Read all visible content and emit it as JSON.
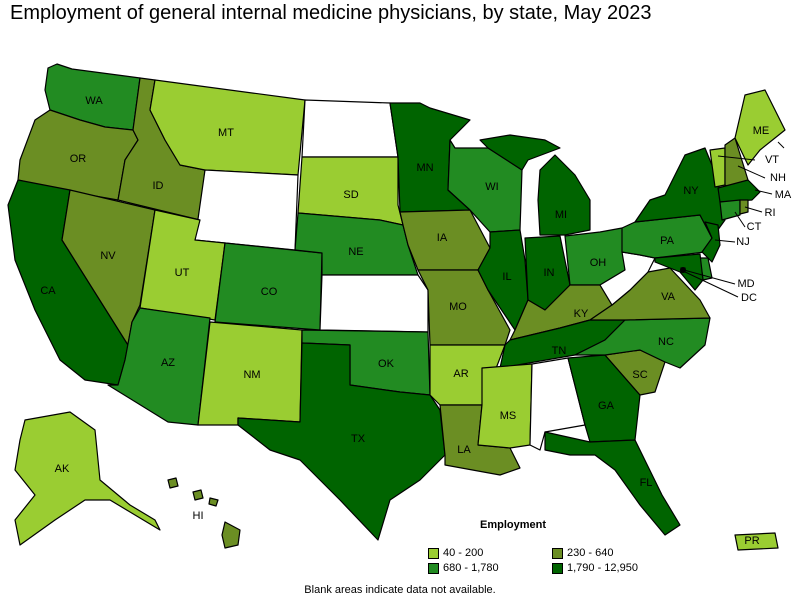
{
  "title": "Employment of general internal medicine physicians, by state, May 2023",
  "legend": {
    "title": "Employment",
    "items": [
      {
        "label": "40 - 200",
        "color": "#9acd32"
      },
      {
        "label": "230 - 640",
        "color": "#6b8e23"
      },
      {
        "label": "680 - 1,780",
        "color": "#228b22"
      },
      {
        "label": "1,790 - 12,950",
        "color": "#006400"
      }
    ]
  },
  "note": "Blank areas indicate data not available.",
  "colors": {
    "c1": "#9acd32",
    "c2": "#6b8e23",
    "c3": "#228b22",
    "c4": "#006400",
    "blank": "#ffffff"
  },
  "states": {
    "WA": {
      "label": "WA",
      "cls": "c3"
    },
    "OR": {
      "label": "OR",
      "cls": "c2"
    },
    "CA": {
      "label": "CA",
      "cls": "c4"
    },
    "ID": {
      "label": "ID",
      "cls": "c2"
    },
    "NV": {
      "label": "NV",
      "cls": "c2"
    },
    "MT": {
      "label": "MT",
      "cls": "c1"
    },
    "WY": {
      "label": "",
      "cls": "blank"
    },
    "UT": {
      "label": "UT",
      "cls": "c1"
    },
    "AZ": {
      "label": "AZ",
      "cls": "c3"
    },
    "CO": {
      "label": "CO",
      "cls": "c3"
    },
    "NM": {
      "label": "NM",
      "cls": "c1"
    },
    "ND": {
      "label": "",
      "cls": "blank"
    },
    "SD": {
      "label": "SD",
      "cls": "c1"
    },
    "NE": {
      "label": "NE",
      "cls": "c3"
    },
    "KS": {
      "label": "",
      "cls": "blank"
    },
    "OK": {
      "label": "OK",
      "cls": "c3"
    },
    "TX": {
      "label": "TX",
      "cls": "c4"
    },
    "MN": {
      "label": "MN",
      "cls": "c4"
    },
    "IA": {
      "label": "IA",
      "cls": "c2"
    },
    "MO": {
      "label": "MO",
      "cls": "c2"
    },
    "AR": {
      "label": "AR",
      "cls": "c1"
    },
    "LA": {
      "label": "LA",
      "cls": "c2"
    },
    "WI": {
      "label": "WI",
      "cls": "c3"
    },
    "IL": {
      "label": "IL",
      "cls": "c4"
    },
    "MI": {
      "label": "MI",
      "cls": "c4"
    },
    "IN": {
      "label": "IN",
      "cls": "c4"
    },
    "OH": {
      "label": "OH",
      "cls": "c3"
    },
    "KY": {
      "label": "KY",
      "cls": "c2"
    },
    "TN": {
      "label": "TN",
      "cls": "c4"
    },
    "MS": {
      "label": "MS",
      "cls": "c1"
    },
    "AL": {
      "label": "",
      "cls": "blank"
    },
    "GA": {
      "label": "GA",
      "cls": "c4"
    },
    "FL": {
      "label": "FL",
      "cls": "c4"
    },
    "SC": {
      "label": "SC",
      "cls": "c2"
    },
    "NC": {
      "label": "NC",
      "cls": "c3"
    },
    "VA": {
      "label": "VA",
      "cls": "c2"
    },
    "WV": {
      "label": "",
      "cls": "blank"
    },
    "PA": {
      "label": "PA",
      "cls": "c3"
    },
    "NY": {
      "label": "NY",
      "cls": "c4"
    },
    "VT": {
      "label": "VT",
      "cls": "c1"
    },
    "NH": {
      "label": "NH",
      "cls": "c2"
    },
    "ME": {
      "label": "ME",
      "cls": "c1"
    },
    "MA": {
      "label": "MA",
      "cls": "c4"
    },
    "RI": {
      "label": "RI",
      "cls": "c2"
    },
    "CT": {
      "label": "CT",
      "cls": "c3"
    },
    "NJ": {
      "label": "NJ",
      "cls": "c4"
    },
    "DE": {
      "label": "",
      "cls": "c3"
    },
    "MD": {
      "label": "MD",
      "cls": "c4"
    },
    "DC": {
      "label": "DC",
      "cls": "c4"
    },
    "AK": {
      "label": "AK",
      "cls": "c1"
    },
    "HI": {
      "label": "HI",
      "cls": "c2"
    },
    "PR": {
      "label": "PR",
      "cls": "c1"
    }
  }
}
